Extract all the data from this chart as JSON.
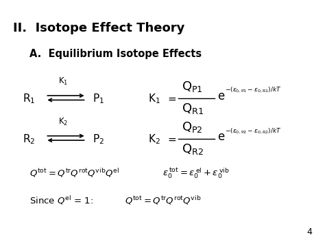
{
  "title1": "II.  Isotope Effect Theory",
  "title2": "A.  Equilibrium Isotope Effects",
  "bg_color": "#ffffff",
  "text_color": "#000000",
  "page_number": "4",
  "fig_width": 4.74,
  "fig_height": 3.55,
  "dpi": 100
}
